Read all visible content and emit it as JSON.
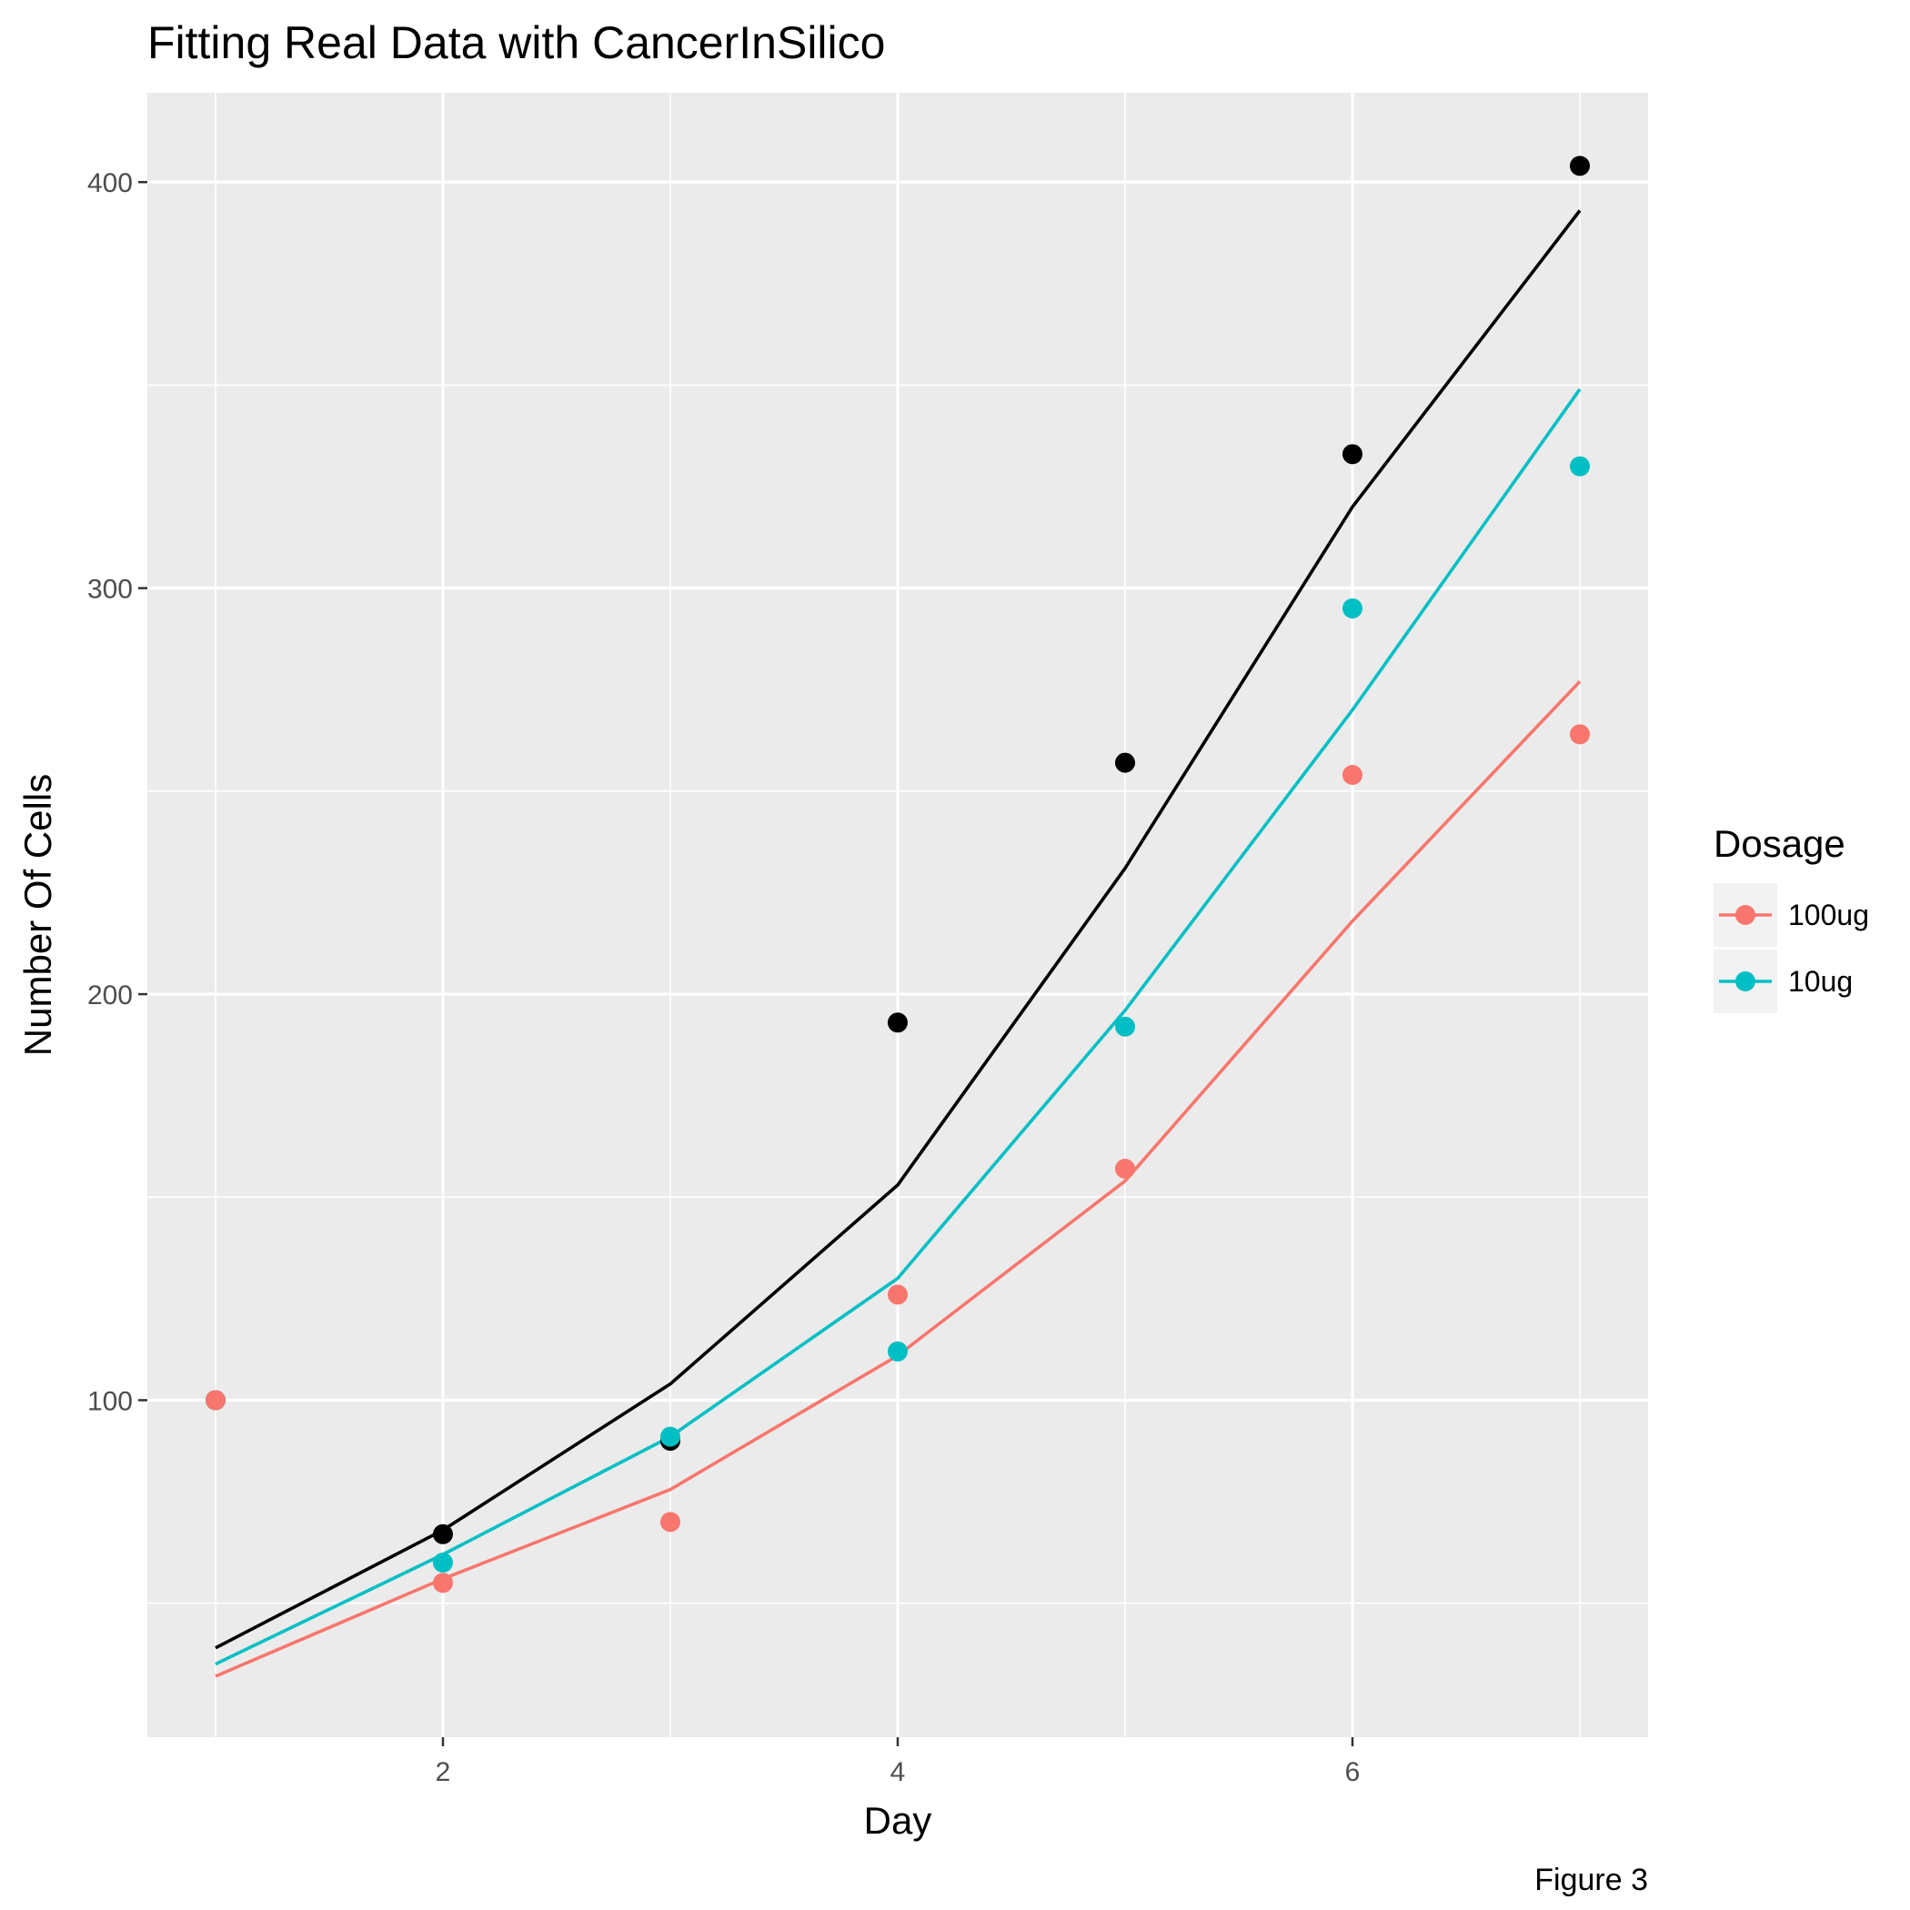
{
  "chart_data": {
    "type": "line",
    "title": "Fitting Real Data with CancerInSilico",
    "xlabel": "Day",
    "ylabel": "Number Of Cells",
    "caption": "Figure 3",
    "xlim": [
      0.7,
      7.3
    ],
    "ylim": [
      17,
      422
    ],
    "x_ticks": [
      2,
      4,
      6
    ],
    "y_ticks": [
      100,
      200,
      300,
      400
    ],
    "grid": true,
    "legend": {
      "title": "Dosage",
      "position": "right",
      "entries": [
        "100ug",
        "10ug"
      ]
    },
    "series": [
      {
        "color": "#000000",
        "x": [
          1,
          2,
          3,
          4,
          5,
          6,
          7
        ],
        "points": [
          100,
          67,
          90,
          193,
          257,
          333,
          404
        ],
        "fit": [
          39,
          68,
          104,
          153,
          231,
          320,
          393
        ]
      },
      {
        "name": "10ug",
        "color": "#00bfc4",
        "x": [
          1,
          2,
          3,
          4,
          5,
          6,
          7
        ],
        "points": [
          100,
          60,
          91,
          112,
          192,
          295,
          330
        ],
        "fit": [
          35,
          62,
          91,
          130,
          196,
          270,
          349
        ]
      },
      {
        "name": "100ug",
        "color": "#f8766d",
        "x": [
          1,
          2,
          3,
          4,
          5,
          6,
          7
        ],
        "points": [
          100,
          55,
          70,
          126,
          157,
          254,
          264
        ],
        "fit": [
          32,
          56,
          78,
          111,
          154,
          218,
          277
        ]
      }
    ]
  }
}
